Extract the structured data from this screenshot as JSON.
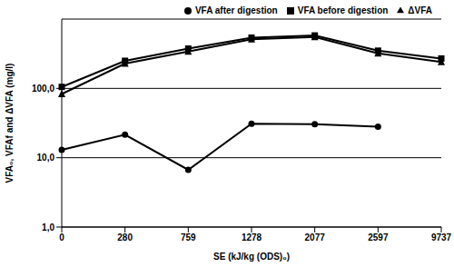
{
  "chart_data": {
    "type": "line",
    "x_label": "SE (kJ/kg (ODS)₀)",
    "y_label": "VFA₀, VFAf and ΔVFA (mg/l)",
    "categories": [
      "0",
      "280",
      "759",
      "1278",
      "2077",
      "2597",
      "9737"
    ],
    "series": [
      {
        "name": "VFA before digestion",
        "color": "#000000",
        "marker": "square",
        "line_style": "solid",
        "values": [
          105,
          250,
          375,
          540,
          580,
          350,
          270
        ]
      },
      {
        "name": "VFA after digestion",
        "color": "#000000",
        "marker": "circle",
        "line_style": "solid",
        "values": [
          13,
          21.5,
          6.7,
          31,
          30.5,
          28,
          null
        ]
      },
      {
        "name": "ΔVFA",
        "color": "#000000",
        "marker": "triangle",
        "line_style": "solid",
        "values": [
          83,
          228,
          340,
          510,
          550,
          320,
          240
        ]
      }
    ],
    "log": "y",
    "ylim": [
      1,
      1000
    ],
    "yticks": [
      {
        "value": 1,
        "label": "1,0"
      },
      {
        "value": 10,
        "label": "10,0"
      },
      {
        "value": 100,
        "label": "100,0"
      }
    ],
    "grid": true,
    "legend": "top-right"
  }
}
